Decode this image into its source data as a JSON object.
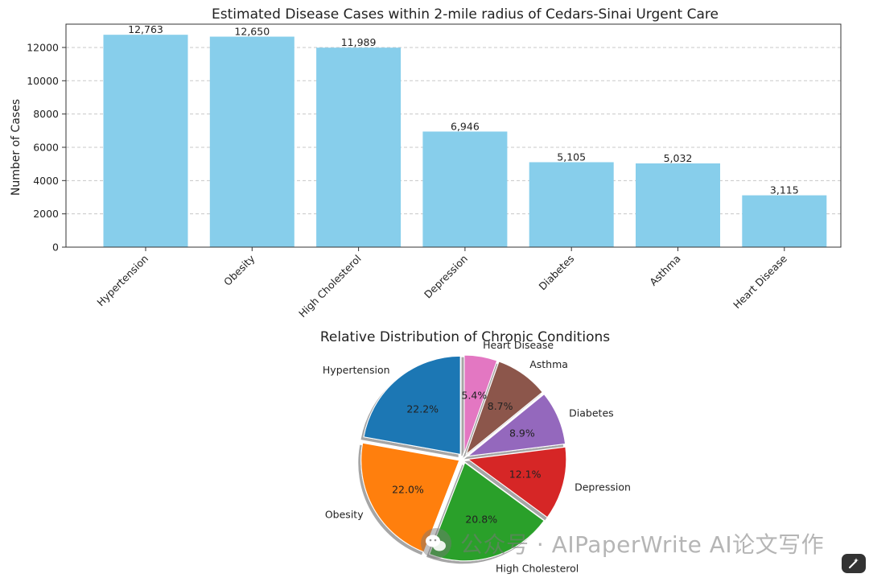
{
  "chart_data": [
    {
      "type": "bar",
      "title": "Estimated Disease Cases within 2-mile radius of Cedars-Sinai Urgent Care",
      "xlabel": "",
      "ylabel": "Number of Cases",
      "categories": [
        "Hypertension",
        "Obesity",
        "High Cholesterol",
        "Depression",
        "Diabetes",
        "Asthma",
        "Heart Disease"
      ],
      "values": [
        12763,
        12650,
        11989,
        6946,
        5105,
        5032,
        3115
      ],
      "value_labels": [
        "12,763",
        "12,650",
        "11,989",
        "6,946",
        "5,105",
        "5,032",
        "3,115"
      ],
      "y_ticks": [
        0,
        2000,
        4000,
        6000,
        8000,
        10000,
        12000
      ],
      "y_tick_labels": [
        "0",
        "2000",
        "4000",
        "6000",
        "8000",
        "10000",
        "12000"
      ],
      "ylim": [
        0,
        13401
      ],
      "grid": "y-dashed",
      "bar_color": "#87ceeb"
    },
    {
      "type": "pie",
      "title": "Relative Distribution of Chronic Conditions",
      "labels": [
        "Hypertension",
        "Obesity",
        "High Cholesterol",
        "Depression",
        "Diabetes",
        "Asthma",
        "Heart Disease"
      ],
      "values": [
        12763,
        12650,
        11989,
        6946,
        5105,
        5032,
        3115
      ],
      "pct_labels": [
        "22.2%",
        "22.0%",
        "20.8%",
        "12.1%",
        "8.9%",
        "8.7%",
        "5.4%"
      ],
      "colors": [
        "#1f77b4",
        "#ff7f0e",
        "#2ca02c",
        "#d62728",
        "#9467bd",
        "#8c564b",
        "#e377c2"
      ],
      "start_angle_deg": 90,
      "shadow": true,
      "exploded": true
    }
  ],
  "watermark": {
    "text": "公众号 · AIPaperWrite AI论文写作",
    "icon": "wechat-icon"
  },
  "corner_button": {
    "icon": "magic-wand-icon"
  }
}
